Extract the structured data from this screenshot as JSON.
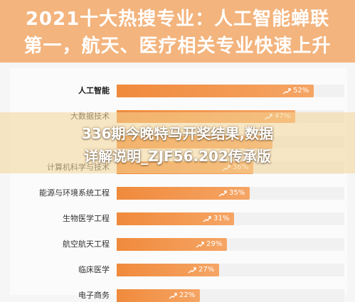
{
  "header": {
    "line1": "2021十大热搜专业：人工智能蝉联",
    "line2": "第一，航天、医疗相关专业快速上升"
  },
  "overlay": {
    "line1": "336期今晚特马开奖结果,数据",
    "line2": "详解说明_ZJF56.202传承版"
  },
  "colors": {
    "header_bg": "#f3b47e",
    "bar": "#f08a3c",
    "label": "#333333"
  },
  "chart_data": {
    "type": "bar",
    "orientation": "horizontal",
    "categories": [
      "人工智能",
      "大数据技术",
      "",
      "计算机科学与技术",
      "能源与环境系统工程",
      "生物医学工程",
      "航空航天工程",
      "临床医学",
      "电子商务"
    ],
    "values": [
      52,
      47,
      41,
      36,
      35,
      31,
      29,
      27,
      22
    ],
    "value_labels": [
      "52%",
      "47%",
      "",
      "36%",
      "35%",
      "31%",
      "29%",
      "27%",
      "22%"
    ],
    "xlim": [
      0,
      60
    ],
    "title": "",
    "xlabel": "",
    "ylabel": "",
    "grid": false,
    "legend": "none"
  }
}
